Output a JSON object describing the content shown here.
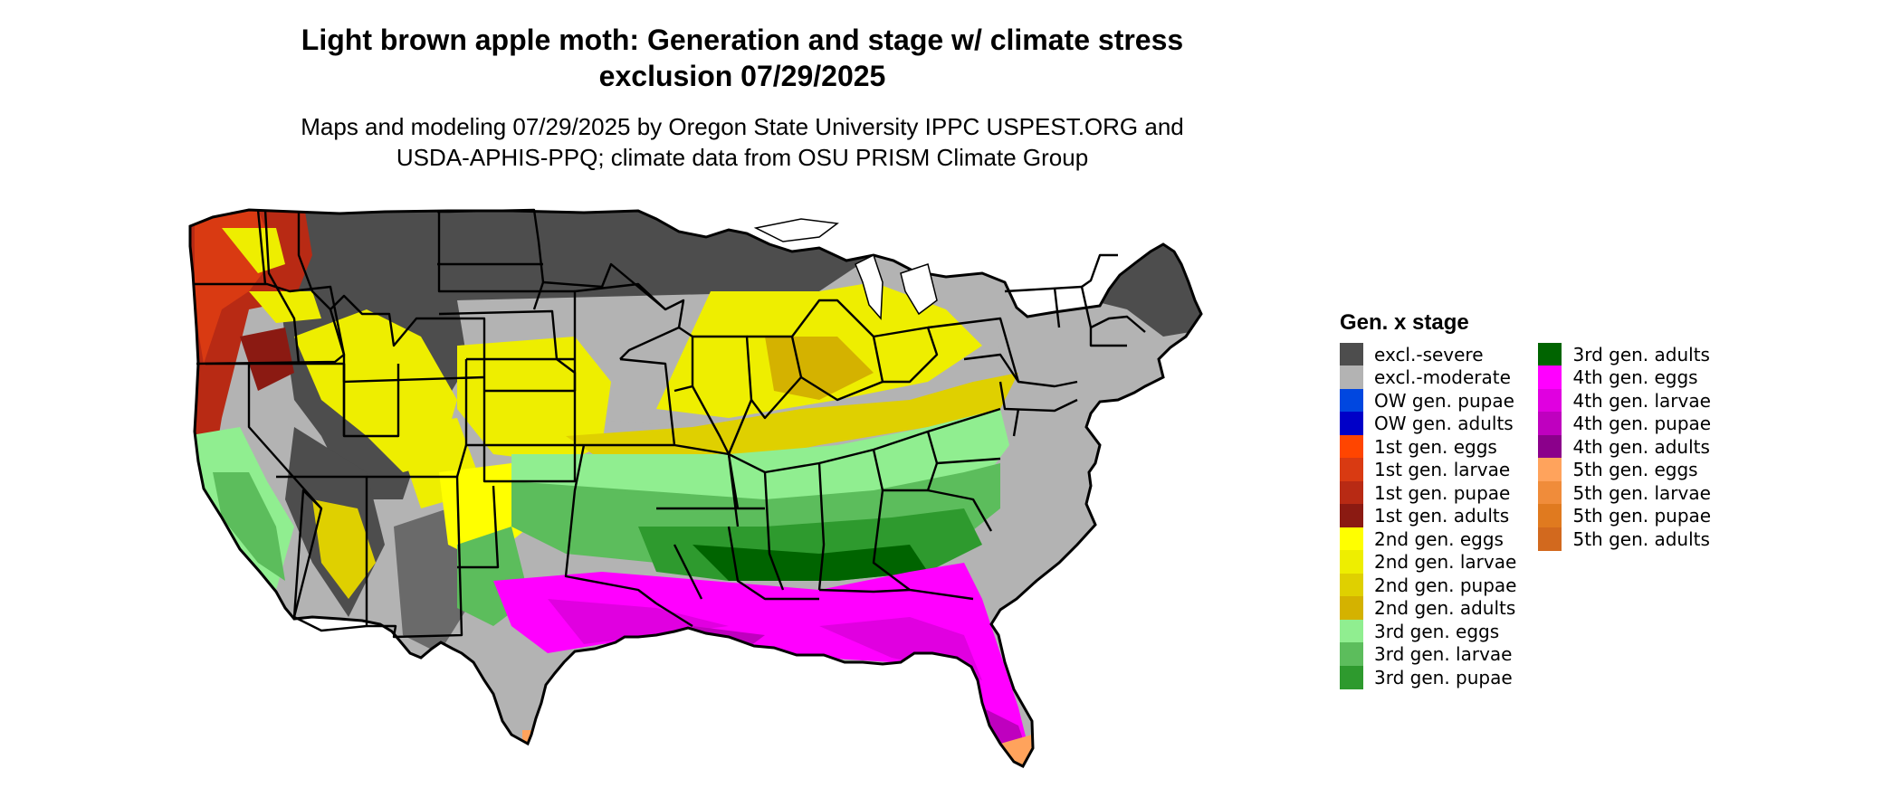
{
  "title_line1": "Light brown apple moth: Generation and stage w/ climate stress",
  "title_line2": "exclusion 07/29/2025",
  "subtitle_line1": "Maps and modeling 07/29/2025 by Oregon State University IPPC USPEST.ORG and",
  "subtitle_line2": "USDA-APHIS-PPQ; climate data from OSU PRISM Climate Group",
  "legend": {
    "title": "Gen. x stage",
    "column1": [
      {
        "label": "excl.-severe",
        "color": "#4d4d4d"
      },
      {
        "label": "excl.-moderate",
        "color": "#b3b3b3"
      },
      {
        "label": "OW gen. pupae",
        "color": "#0047e0"
      },
      {
        "label": "OW gen. adults",
        "color": "#0000c8"
      },
      {
        "label": "1st gen. eggs",
        "color": "#ff4500"
      },
      {
        "label": "1st gen. larvae",
        "color": "#d93a12"
      },
      {
        "label": "1st gen. pupae",
        "color": "#b82a14"
      },
      {
        "label": "1st gen. adults",
        "color": "#8b1a12"
      },
      {
        "label": "2nd gen. eggs",
        "color": "#ffff00"
      },
      {
        "label": "2nd gen. larvae",
        "color": "#eeee00"
      },
      {
        "label": "2nd gen. pupae",
        "color": "#dfd000"
      },
      {
        "label": "2nd gen. adults",
        "color": "#d4b200"
      },
      {
        "label": "3rd gen. eggs",
        "color": "#90ee90"
      },
      {
        "label": "3rd gen. larvae",
        "color": "#5cbd5c"
      },
      {
        "label": "3rd gen. pupae",
        "color": "#2e9a2e"
      }
    ],
    "column2": [
      {
        "label": "3rd gen. adults",
        "color": "#006400"
      },
      {
        "label": "4th gen. eggs",
        "color": "#ff00ff"
      },
      {
        "label": "4th gen. larvae",
        "color": "#e000e0"
      },
      {
        "label": "4th gen. pupae",
        "color": "#bf00bf"
      },
      {
        "label": "4th gen. adults",
        "color": "#8b008b"
      },
      {
        "label": "5th gen. eggs",
        "color": "#ffa35c"
      },
      {
        "label": "5th gen. larvae",
        "color": "#f08c3a"
      },
      {
        "label": "5th gen. pupae",
        "color": "#e07a1f"
      },
      {
        "label": "5th gen. adults",
        "color": "#d2691e"
      }
    ]
  }
}
